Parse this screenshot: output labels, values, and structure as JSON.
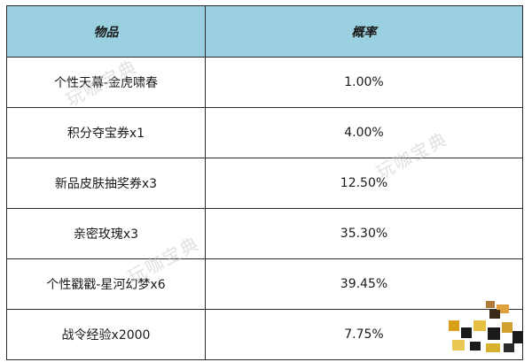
{
  "table": {
    "headers": [
      "物品",
      "概率"
    ],
    "rows": [
      {
        "item": "个性天幕-金虎啸春",
        "prob": "1.00%"
      },
      {
        "item": "积分夺宝券x1",
        "prob": "4.00%"
      },
      {
        "item": "新品皮肤抽奖券x3",
        "prob": "12.50%"
      },
      {
        "item": "亲密玫瑰x3",
        "prob": "35.30%"
      },
      {
        "item": "个性戳戳-星河幻梦x6",
        "prob": "39.45%"
      },
      {
        "item": "战令经验x2000",
        "prob": "7.75%"
      }
    ]
  },
  "watermark": {
    "text": "玩咖宝典"
  },
  "colors": {
    "header_bg": "#9bd0e0",
    "border": "#2b2b2b"
  }
}
